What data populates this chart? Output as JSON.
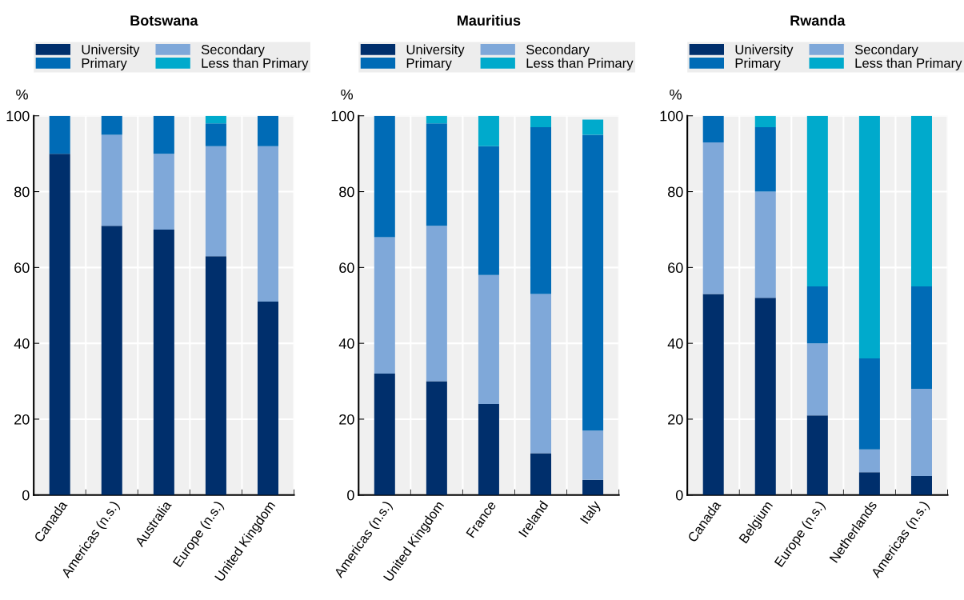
{
  "chart_data": [
    {
      "type": "bar",
      "title": "Botswana",
      "ylabel": "%",
      "stacked": true,
      "grid": true,
      "legend": "top",
      "categories": [
        "Canada",
        "Americas (n.s.)",
        "Australia",
        "Europe (n.s.)",
        "United Kingdom"
      ],
      "ylim": [
        0,
        100
      ],
      "yticks": [
        0,
        20,
        40,
        60,
        80,
        100
      ],
      "series": [
        {
          "name": "University",
          "color": "#002f6c",
          "values": [
            90,
            71,
            70,
            63,
            51
          ]
        },
        {
          "name": "Secondary",
          "color": "#7fa8d9",
          "values": [
            0,
            24,
            20,
            29,
            41
          ]
        },
        {
          "name": "Primary",
          "color": "#006bb6",
          "values": [
            10,
            5,
            10,
            6,
            8
          ]
        },
        {
          "name": "Less than Primary",
          "color": "#00aacc",
          "values": [
            0,
            0,
            0,
            2,
            0
          ]
        }
      ]
    },
    {
      "type": "bar",
      "title": "Mauritius",
      "ylabel": "%",
      "stacked": true,
      "grid": true,
      "legend": "top",
      "categories": [
        "Americas (n.s.)",
        "United Kingdom",
        "France",
        "Ireland",
        "Italy"
      ],
      "ylim": [
        0,
        100
      ],
      "yticks": [
        0,
        20,
        40,
        60,
        80,
        100
      ],
      "series": [
        {
          "name": "University",
          "color": "#002f6c",
          "values": [
            32,
            30,
            24,
            11,
            4
          ]
        },
        {
          "name": "Secondary",
          "color": "#7fa8d9",
          "values": [
            36,
            41,
            34,
            42,
            13
          ]
        },
        {
          "name": "Primary",
          "color": "#006bb6",
          "values": [
            32,
            27,
            34,
            44,
            78
          ]
        },
        {
          "name": "Less than Primary",
          "color": "#00aacc",
          "values": [
            0,
            2,
            8,
            3,
            4
          ]
        }
      ]
    },
    {
      "type": "bar",
      "title": "Rwanda",
      "ylabel": "%",
      "stacked": true,
      "grid": true,
      "legend": "top",
      "categories": [
        "Canada",
        "Belgium",
        "Europe (n.s.)",
        "Netherlands",
        "Americas (n.s.)"
      ],
      "ylim": [
        0,
        100
      ],
      "yticks": [
        0,
        20,
        40,
        60,
        80,
        100
      ],
      "series": [
        {
          "name": "University",
          "color": "#002f6c",
          "values": [
            53,
            52,
            21,
            6,
            5
          ]
        },
        {
          "name": "Secondary",
          "color": "#7fa8d9",
          "values": [
            40,
            28,
            19,
            6,
            23
          ]
        },
        {
          "name": "Primary",
          "color": "#006bb6",
          "values": [
            7,
            17,
            15,
            24,
            27
          ]
        },
        {
          "name": "Less than Primary",
          "color": "#00aacc",
          "values": [
            0,
            3,
            45,
            64,
            45
          ]
        }
      ]
    }
  ]
}
